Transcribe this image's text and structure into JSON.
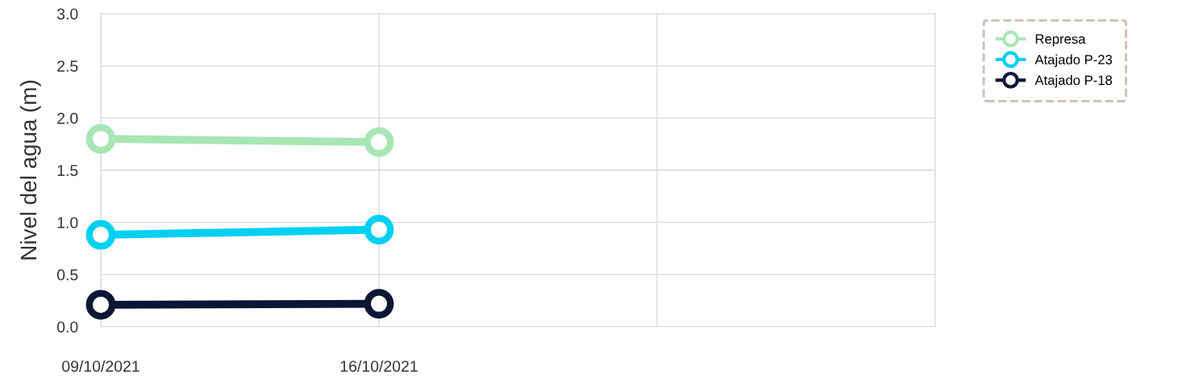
{
  "chart_data": {
    "type": "line",
    "ylabel": "Nivel del agua (m)",
    "x": [
      "2021-10-09",
      "2021-10-16"
    ],
    "series": [
      {
        "name": "Represa",
        "color": "#a8e6b5",
        "values": [
          1.8,
          1.77
        ]
      },
      {
        "name": "Atajado P-23",
        "color": "#00d0f0",
        "values": [
          0.88,
          0.93
        ]
      },
      {
        "name": "Atajado P-18",
        "color": "#0a1633",
        "values": [
          0.21,
          0.22
        ]
      }
    ],
    "xlim": [
      "2021-10-09",
      "2021-10-30"
    ],
    "xticks": [
      {
        "value": "2021-10-09",
        "label": "09/10/2021"
      },
      {
        "value": "2021-10-16",
        "label": "16/10/2021"
      },
      {
        "value": "2021-10-23",
        "label": null
      },
      {
        "value": "2021-10-30",
        "label": null
      }
    ],
    "ylim": [
      0,
      3.0
    ],
    "yticks": [
      {
        "value": 0,
        "label": "0.0"
      },
      {
        "value": 0.5,
        "label": "0.5"
      },
      {
        "value": 1.0,
        "label": "1.0"
      },
      {
        "value": 1.5,
        "label": "1.5"
      },
      {
        "value": 2.0,
        "label": "2.0"
      },
      {
        "value": 2.5,
        "label": "2.5"
      },
      {
        "value": 3.0,
        "label": "3.0"
      }
    ],
    "grid": true,
    "legend": "top right",
    "marker": "circle",
    "line_style": "solid"
  }
}
